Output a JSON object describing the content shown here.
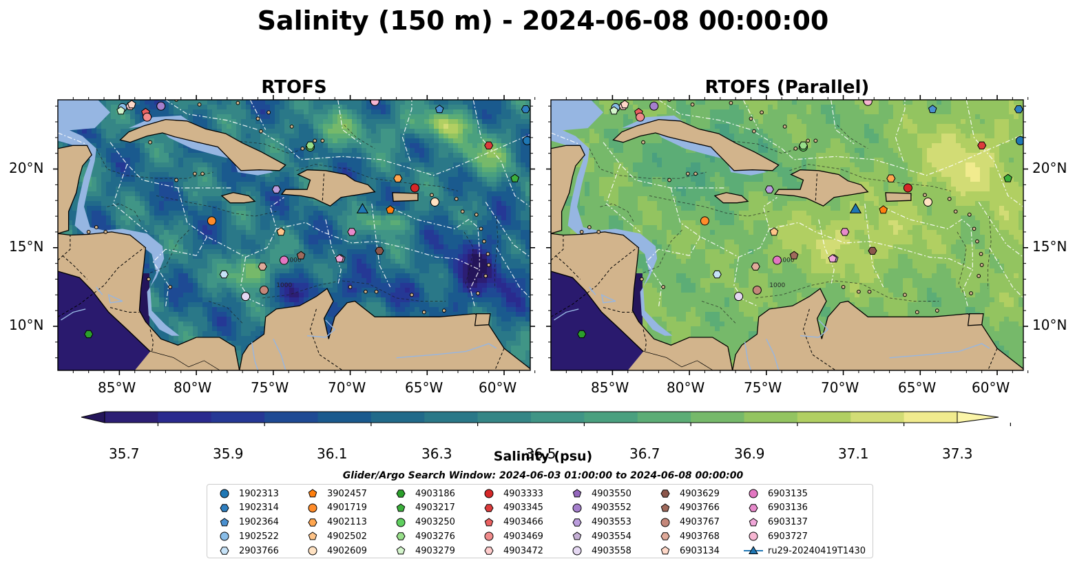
{
  "figure": {
    "title": "Salinity (150 m) - 2024-06-08 00:00:00",
    "panels": [
      {
        "title": "RTOFS",
        "variant": "rtofs"
      },
      {
        "title": "RTOFS (Parallel)",
        "variant": "parallel"
      }
    ],
    "lon_ticks": [
      "85°W",
      "80°W",
      "75°W",
      "70°W",
      "65°W",
      "60°W"
    ],
    "lat_ticks": [
      "20°N",
      "15°N",
      "10°N"
    ],
    "extent": {
      "lon": [
        -89,
        -58.3
      ],
      "lat": [
        7.2,
        24.4
      ]
    },
    "contour_label": "1000"
  },
  "colorbar": {
    "label": "Salinity (psu)",
    "min": 35.6,
    "max": 37.4,
    "step": 0.1,
    "tick_labels": [
      "35.7",
      "35.9",
      "36.1",
      "36.3",
      "36.5",
      "36.7",
      "36.9",
      "37.1",
      "37.3"
    ],
    "colors": [
      "#2c1e74",
      "#2a2a8e",
      "#253895",
      "#1e4a94",
      "#1a5a8e",
      "#216a8a",
      "#2a7888",
      "#358686",
      "#409586",
      "#4aa07f",
      "#5cad76",
      "#76b96a",
      "#93c460",
      "#b1cf62",
      "#d2dc75",
      "#f1eb8e"
    ],
    "under_color": "#24155a",
    "over_color": "#fbf5a8"
  },
  "search_window": "Glider/Argo Search Window: 2024-06-03 01:00:00 to 2024-06-08 00:00:00",
  "legend": [
    {
      "label": "1902313",
      "marker": "circle",
      "color": "#1f77b4"
    },
    {
      "label": "1902314",
      "marker": "hexagon",
      "color": "#2f7fc0"
    },
    {
      "label": "1902364",
      "marker": "pentagon",
      "color": "#4a90d0"
    },
    {
      "label": "1902522",
      "marker": "circle",
      "color": "#89bde8"
    },
    {
      "label": "2903766",
      "marker": "hexagon",
      "color": "#c6e2f7"
    },
    {
      "label": "3902457",
      "marker": "pentagon",
      "color": "#ff7f0e"
    },
    {
      "label": "4901719",
      "marker": "circle",
      "color": "#ff8c2a"
    },
    {
      "label": "4902113",
      "marker": "hexagon",
      "color": "#ffa64f"
    },
    {
      "label": "4902502",
      "marker": "pentagon",
      "color": "#ffc488"
    },
    {
      "label": "4902609",
      "marker": "circle",
      "color": "#ffe2c2"
    },
    {
      "label": "4903186",
      "marker": "hexagon",
      "color": "#2ca02c"
    },
    {
      "label": "4903217",
      "marker": "pentagon",
      "color": "#3cb03c"
    },
    {
      "label": "4903250",
      "marker": "circle",
      "color": "#5fcf5f"
    },
    {
      "label": "4903276",
      "marker": "hexagon",
      "color": "#98df8a"
    },
    {
      "label": "4903279",
      "marker": "pentagon",
      "color": "#d4f5cc"
    },
    {
      "label": "4903333",
      "marker": "circle",
      "color": "#d62728"
    },
    {
      "label": "4903345",
      "marker": "hexagon",
      "color": "#dd3c3c"
    },
    {
      "label": "4903466",
      "marker": "pentagon",
      "color": "#ea6060"
    },
    {
      "label": "4903469",
      "marker": "circle",
      "color": "#f08b8b"
    },
    {
      "label": "4903472",
      "marker": "hexagon",
      "color": "#ffcccc"
    },
    {
      "label": "4903550",
      "marker": "pentagon",
      "color": "#9467bd"
    },
    {
      "label": "4903552",
      "marker": "circle",
      "color": "#a57fcc"
    },
    {
      "label": "4903553",
      "marker": "hexagon",
      "color": "#bb9ddd"
    },
    {
      "label": "4903554",
      "marker": "pentagon",
      "color": "#c5b0d5"
    },
    {
      "label": "4903558",
      "marker": "circle",
      "color": "#e5d8f2"
    },
    {
      "label": "4903629",
      "marker": "hexagon",
      "color": "#8c564b"
    },
    {
      "label": "4903766",
      "marker": "pentagon",
      "color": "#a06a5c"
    },
    {
      "label": "4903767",
      "marker": "circle",
      "color": "#c4877a"
    },
    {
      "label": "4903768",
      "marker": "hexagon",
      "color": "#e0aa9a"
    },
    {
      "label": "6903134",
      "marker": "pentagon",
      "color": "#ffd8c8"
    },
    {
      "label": "6903135",
      "marker": "circle",
      "color": "#e377c2"
    },
    {
      "label": "6903136",
      "marker": "hexagon",
      "color": "#e78acb"
    },
    {
      "label": "6903137",
      "marker": "pentagon",
      "color": "#f0a6d8"
    },
    {
      "label": "6903727",
      "marker": "circle",
      "color": "#f7b6d2"
    },
    {
      "label": "ru29-20240419T1430",
      "marker": "triangle-line",
      "color": "#1f77b4"
    }
  ],
  "floats": [
    {
      "id": "1902313",
      "lon": -58.5,
      "lat": 21.8
    },
    {
      "id": "1902314",
      "lon": -58.6,
      "lat": 23.8
    },
    {
      "id": "1902364",
      "lon": -64.2,
      "lat": 23.8
    },
    {
      "id": "1902522",
      "lon": -84.8,
      "lat": 23.9
    },
    {
      "id": "2903766",
      "lon": -78.2,
      "lat": 13.3
    },
    {
      "id": "3902457",
      "lon": -67.4,
      "lat": 17.4
    },
    {
      "id": "4901719",
      "lon": -79.0,
      "lat": 16.7
    },
    {
      "id": "4902113",
      "lon": -66.9,
      "lat": 19.4
    },
    {
      "id": "4902502",
      "lon": -74.5,
      "lat": 16.0
    },
    {
      "id": "4902609",
      "lon": -64.5,
      "lat": 17.9
    },
    {
      "id": "4903186",
      "lon": -87.0,
      "lat": 9.5
    },
    {
      "id": "4903217",
      "lon": -59.3,
      "lat": 19.4
    },
    {
      "id": "4903250",
      "lon": -72.6,
      "lat": 21.4
    },
    {
      "id": "4903276",
      "lon": -72.6,
      "lat": 21.5
    },
    {
      "id": "4903279",
      "lon": -84.9,
      "lat": 23.7
    },
    {
      "id": "4903333",
      "lon": -65.8,
      "lat": 18.8
    },
    {
      "id": "4903345",
      "lon": -61.0,
      "lat": 21.5
    },
    {
      "id": "4903466",
      "lon": -83.3,
      "lat": 23.6
    },
    {
      "id": "4903469",
      "lon": -83.2,
      "lat": 23.3
    },
    {
      "id": "4903472",
      "lon": -84.3,
      "lat": 24.0
    },
    {
      "id": "4903550",
      "lon": -68.5,
      "lat": 24.4
    },
    {
      "id": "4903552",
      "lon": -82.3,
      "lat": 24.0
    },
    {
      "id": "4903553",
      "lon": -74.8,
      "lat": 18.7
    },
    {
      "id": "4903554",
      "lon": -70.6,
      "lat": 14.3
    },
    {
      "id": "4903558",
      "lon": -76.8,
      "lat": 11.9
    },
    {
      "id": "4903629",
      "lon": -68.1,
      "lat": 14.8
    },
    {
      "id": "4903766",
      "lon": -73.2,
      "lat": 14.5
    },
    {
      "id": "4903767",
      "lon": -75.6,
      "lat": 12.3
    },
    {
      "id": "4903768",
      "lon": -75.7,
      "lat": 13.8
    },
    {
      "id": "6903134",
      "lon": -84.2,
      "lat": 24.1
    },
    {
      "id": "6903135",
      "lon": -74.3,
      "lat": 14.2
    },
    {
      "id": "6903136",
      "lon": -69.9,
      "lat": 16.0
    },
    {
      "id": "6903137",
      "lon": -70.7,
      "lat": 14.3
    },
    {
      "id": "6903727",
      "lon": -68.4,
      "lat": 24.3
    },
    {
      "id": "ru29-20240419T1430",
      "lon": -69.2,
      "lat": 17.4
    }
  ]
}
